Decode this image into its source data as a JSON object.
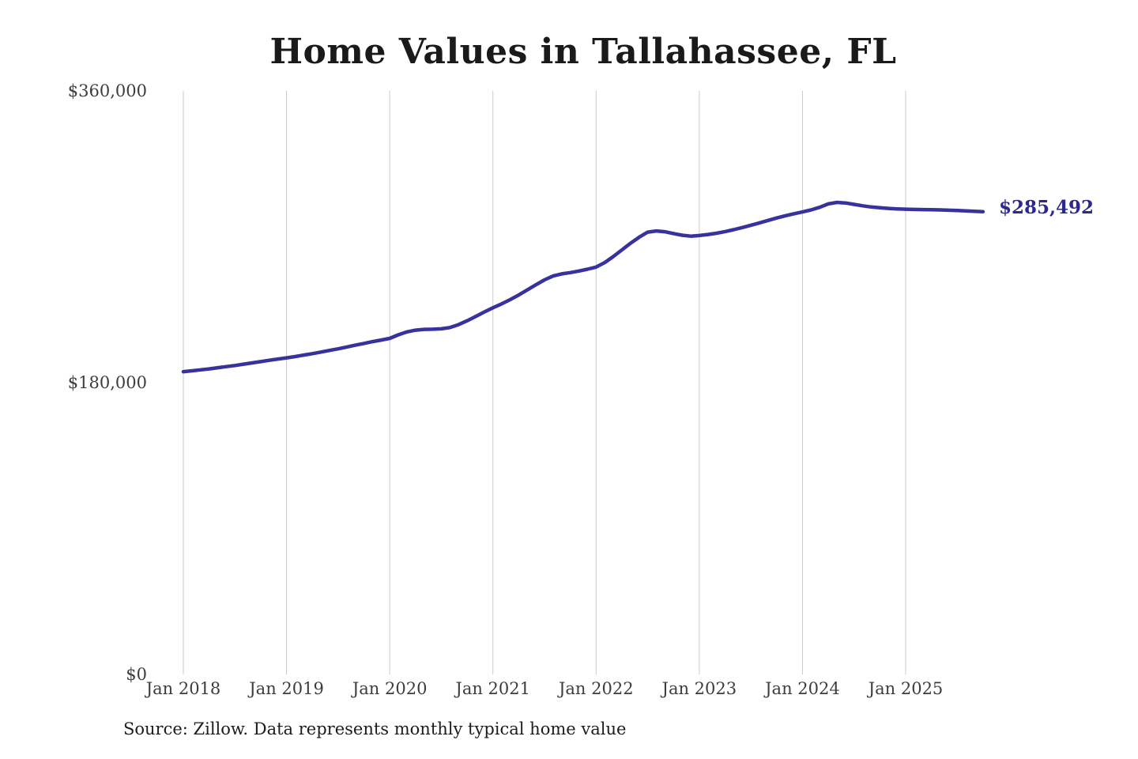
{
  "chart_data": {
    "type": "line",
    "title": "Home Values in Tallahassee, FL",
    "source_note": "Source: Zillow. Data represents monthly typical home value",
    "end_label": "$285,492",
    "latest_value": 285492,
    "line_color": "#38329f",
    "end_label_color": "#2d2890",
    "grid_color": "#cbcbcb",
    "tick_text_color": "#3d3d3d",
    "title_color": "#1a1a1a",
    "background_color": "#ffffff",
    "legend": "none",
    "grid": "vertical-only",
    "x_start": "2018-01",
    "x_end": "2025-10",
    "x_frequency": "monthly",
    "x_tick_labels": [
      "Jan 2018",
      "Jan 2019",
      "Jan 2020",
      "Jan 2021",
      "Jan 2022",
      "Jan 2023",
      "Jan 2024",
      "Jan 2025"
    ],
    "x_tick_month_index": [
      0,
      12,
      24,
      36,
      48,
      60,
      72,
      84
    ],
    "y_tick_labels": [
      "$0",
      "$180,000",
      "$360,000"
    ],
    "y_tick_values": [
      0,
      180000,
      360000
    ],
    "ylim": [
      0,
      360000
    ],
    "values": [
      186800,
      187300,
      187900,
      188500,
      189200,
      189900,
      190600,
      191400,
      192200,
      193000,
      193800,
      194600,
      195300,
      196100,
      197000,
      197900,
      198900,
      199900,
      200900,
      202000,
      203100,
      204200,
      205300,
      206300,
      207300,
      209500,
      211300,
      212400,
      212900,
      213000,
      213200,
      214000,
      215800,
      218200,
      220900,
      223600,
      226200,
      228600,
      231200,
      234100,
      237200,
      240400,
      243400,
      245800,
      247100,
      247900,
      248900,
      250000,
      251300,
      254100,
      257800,
      261900,
      266000,
      269700,
      272900,
      273600,
      273100,
      272000,
      271000,
      270400,
      270800,
      271400,
      272200,
      273200,
      274400,
      275700,
      277100,
      278600,
      280100,
      281600,
      283000,
      284200,
      285300,
      286600,
      288200,
      290300,
      291200,
      290900,
      290000,
      289100,
      288400,
      287900,
      287500,
      287200,
      287000,
      286900,
      286800,
      286700,
      286600,
      286400,
      286200,
      286000,
      285750,
      285492
    ]
  }
}
